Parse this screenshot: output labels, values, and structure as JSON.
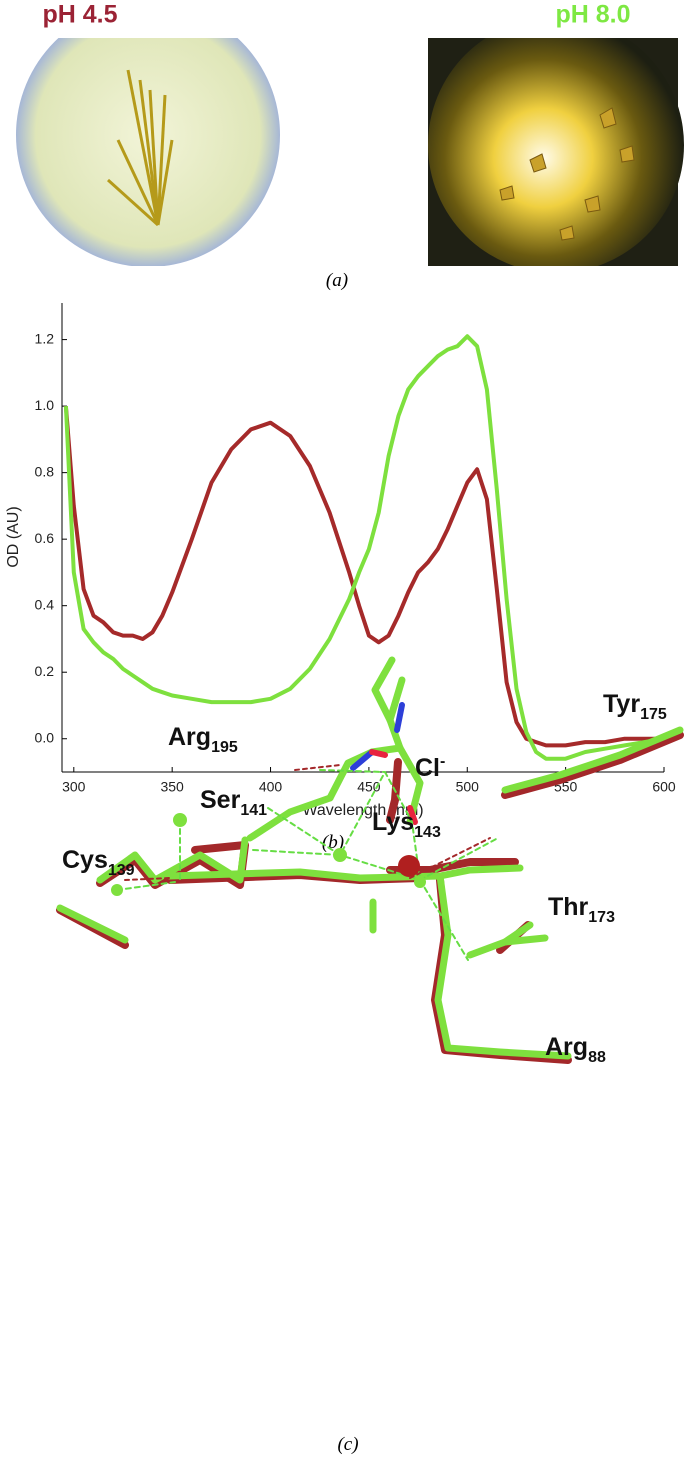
{
  "panel_a": {
    "left_label": "pH 4.5",
    "right_label": "pH 8.0",
    "caption": "(a)"
  },
  "chart_data": {
    "type": "line",
    "caption": "(b)",
    "x_label": "Wavelength (nm)",
    "y_label": "OD (AU)",
    "x": [
      296,
      300,
      305,
      310,
      315,
      320,
      325,
      330,
      335,
      340,
      345,
      350,
      360,
      370,
      380,
      390,
      400,
      410,
      420,
      430,
      440,
      445,
      450,
      455,
      460,
      465,
      470,
      475,
      480,
      485,
      490,
      495,
      500,
      505,
      510,
      515,
      520,
      525,
      530,
      535,
      540,
      550,
      560,
      570,
      580,
      590,
      600
    ],
    "series": [
      {
        "color": "#a52a2a",
        "values": [
          1.0,
          0.7,
          0.45,
          0.37,
          0.35,
          0.32,
          0.31,
          0.31,
          0.3,
          0.32,
          0.37,
          0.44,
          0.6,
          0.77,
          0.87,
          0.93,
          0.95,
          0.91,
          0.82,
          0.68,
          0.5,
          0.4,
          0.31,
          0.29,
          0.31,
          0.37,
          0.44,
          0.5,
          0.53,
          0.57,
          0.63,
          0.7,
          0.77,
          0.81,
          0.72,
          0.45,
          0.17,
          0.05,
          0.0,
          -0.01,
          -0.02,
          -0.02,
          -0.01,
          -0.01,
          0.0,
          0.0,
          0.0
        ]
      },
      {
        "color": "#7ee03e",
        "values": [
          1.0,
          0.5,
          0.33,
          0.29,
          0.26,
          0.24,
          0.21,
          0.19,
          0.17,
          0.15,
          0.14,
          0.13,
          0.12,
          0.11,
          0.11,
          0.11,
          0.12,
          0.15,
          0.21,
          0.3,
          0.42,
          0.5,
          0.57,
          0.68,
          0.85,
          0.97,
          1.05,
          1.09,
          1.12,
          1.15,
          1.17,
          1.18,
          1.21,
          1.18,
          1.05,
          0.75,
          0.42,
          0.15,
          0.02,
          -0.04,
          -0.06,
          -0.06,
          -0.04,
          -0.03,
          -0.02,
          -0.01,
          0.0
        ]
      }
    ],
    "xlim": [
      294,
      600
    ],
    "ylim": [
      -0.1,
      1.31
    ],
    "xticks": [
      300,
      350,
      400,
      450,
      500,
      550,
      600
    ],
    "yticks": [
      {
        "value": 0,
        "label": "0.0"
      },
      0.2,
      0.4,
      0.6,
      0.8,
      {
        "value": 1,
        "label": "1.0"
      },
      1.2
    ],
    "grid": false
  },
  "panel_c": {
    "caption": "(c)",
    "labels": [
      {
        "name": "Lys",
        "sub": "143"
      },
      {
        "name": "Arg",
        "sub": "195"
      },
      {
        "name": "Tyr",
        "sub": "175"
      },
      {
        "name": "Cl",
        "sup": "-"
      },
      {
        "name": "Ser",
        "sub": "141"
      },
      {
        "name": "Cys",
        "sub": "139"
      },
      {
        "name": "Thr",
        "sub": "173"
      },
      {
        "name": "Arg",
        "sub": "88"
      }
    ]
  }
}
